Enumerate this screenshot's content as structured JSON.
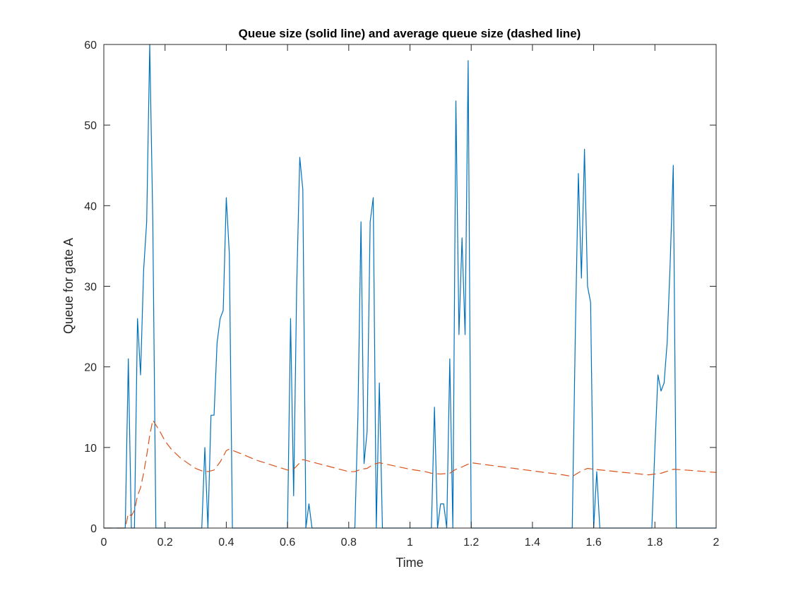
{
  "chart_data": {
    "type": "line",
    "title": "Queue size (solid line) and average queue size (dashed line)",
    "xlabel": "Time",
    "ylabel": "Queue for gate A",
    "xlim": [
      0,
      2
    ],
    "ylim": [
      0,
      60
    ],
    "xticks": [
      0,
      0.2,
      0.4,
      0.6,
      0.8,
      1,
      1.2,
      1.4,
      1.6,
      1.8,
      2
    ],
    "xtick_labels": [
      "0",
      "0.2",
      "0.4",
      "0.6",
      "0.8",
      "1",
      "1.2",
      "1.4",
      "1.6",
      "1.8",
      "2"
    ],
    "yticks": [
      0,
      10,
      20,
      30,
      40,
      50,
      60
    ],
    "ytick_labels": [
      "0",
      "10",
      "20",
      "30",
      "40",
      "50",
      "60"
    ],
    "grid": false,
    "box": true,
    "series": [
      {
        "style": "solid",
        "color": "#0072BD",
        "x": [
          0,
          0.07,
          0.08,
          0.09,
          0.1,
          0.11,
          0.12,
          0.13,
          0.14,
          0.15,
          0.16,
          0.17,
          0.32,
          0.33,
          0.34,
          0.35,
          0.36,
          0.37,
          0.38,
          0.39,
          0.4,
          0.41,
          0.42,
          0.6,
          0.61,
          0.62,
          0.63,
          0.64,
          0.65,
          0.66,
          0.67,
          0.68,
          0.82,
          0.83,
          0.84,
          0.85,
          0.86,
          0.87,
          0.88,
          0.89,
          0.9,
          0.91,
          1.07,
          1.08,
          1.09,
          1.1,
          1.11,
          1.12,
          1.13,
          1.14,
          1.15,
          1.16,
          1.17,
          1.18,
          1.19,
          1.2,
          1.53,
          1.54,
          1.55,
          1.56,
          1.57,
          1.58,
          1.59,
          1.6,
          1.61,
          1.62,
          1.78,
          1.79,
          1.8,
          1.81,
          1.82,
          1.83,
          1.84,
          1.85,
          1.86,
          1.87,
          2
        ],
        "y": [
          0,
          0,
          21,
          0,
          0,
          26,
          19,
          32,
          38,
          60,
          38,
          0,
          0,
          10,
          0,
          14,
          14,
          23,
          26,
          27,
          41,
          34,
          0,
          0,
          26,
          4,
          30,
          46,
          42,
          0,
          3,
          0,
          0,
          14,
          38,
          8,
          12,
          38,
          41,
          0,
          18,
          0,
          0,
          15,
          0,
          3,
          3,
          0,
          21,
          0,
          53,
          24,
          36,
          24,
          58,
          0,
          0,
          24,
          44,
          31,
          47,
          30,
          28,
          0,
          7,
          0,
          0,
          0,
          10,
          19,
          17,
          18,
          23,
          33,
          45,
          0,
          0
        ]
      },
      {
        "style": "dashed",
        "color": "#D95319",
        "x": [
          0,
          0.07,
          0.08,
          0.09,
          0.1,
          0.11,
          0.12,
          0.13,
          0.14,
          0.15,
          0.16,
          0.18,
          0.2,
          0.22,
          0.25,
          0.28,
          0.3,
          0.32,
          0.34,
          0.36,
          0.38,
          0.4,
          0.41,
          0.45,
          0.5,
          0.55,
          0.6,
          0.62,
          0.64,
          0.65,
          0.7,
          0.75,
          0.8,
          0.82,
          0.84,
          0.86,
          0.88,
          0.9,
          0.95,
          1.0,
          1.05,
          1.07,
          1.1,
          1.13,
          1.15,
          1.16,
          1.2,
          1.3,
          1.4,
          1.5,
          1.53,
          1.56,
          1.58,
          1.6,
          1.7,
          1.78,
          1.82,
          1.86,
          1.9,
          2
        ],
        "y": [
          0,
          0,
          1.8,
          1.5,
          2.2,
          4,
          5,
          6.8,
          9,
          11.5,
          13.4,
          12.2,
          10.8,
          9.8,
          8.7,
          7.9,
          7.4,
          7.1,
          7.0,
          7.2,
          8.2,
          9.6,
          9.8,
          9.2,
          8.4,
          7.8,
          7.2,
          7.3,
          8.1,
          8.5,
          8.0,
          7.5,
          7.0,
          7.0,
          7.3,
          7.4,
          7.9,
          8.1,
          7.7,
          7.3,
          7.0,
          6.8,
          6.7,
          6.8,
          7.3,
          7.4,
          8.1,
          7.6,
          7.1,
          6.6,
          6.4,
          7.1,
          7.4,
          7.3,
          6.9,
          6.6,
          6.8,
          7.3,
          7.2,
          6.9
        ]
      }
    ]
  }
}
